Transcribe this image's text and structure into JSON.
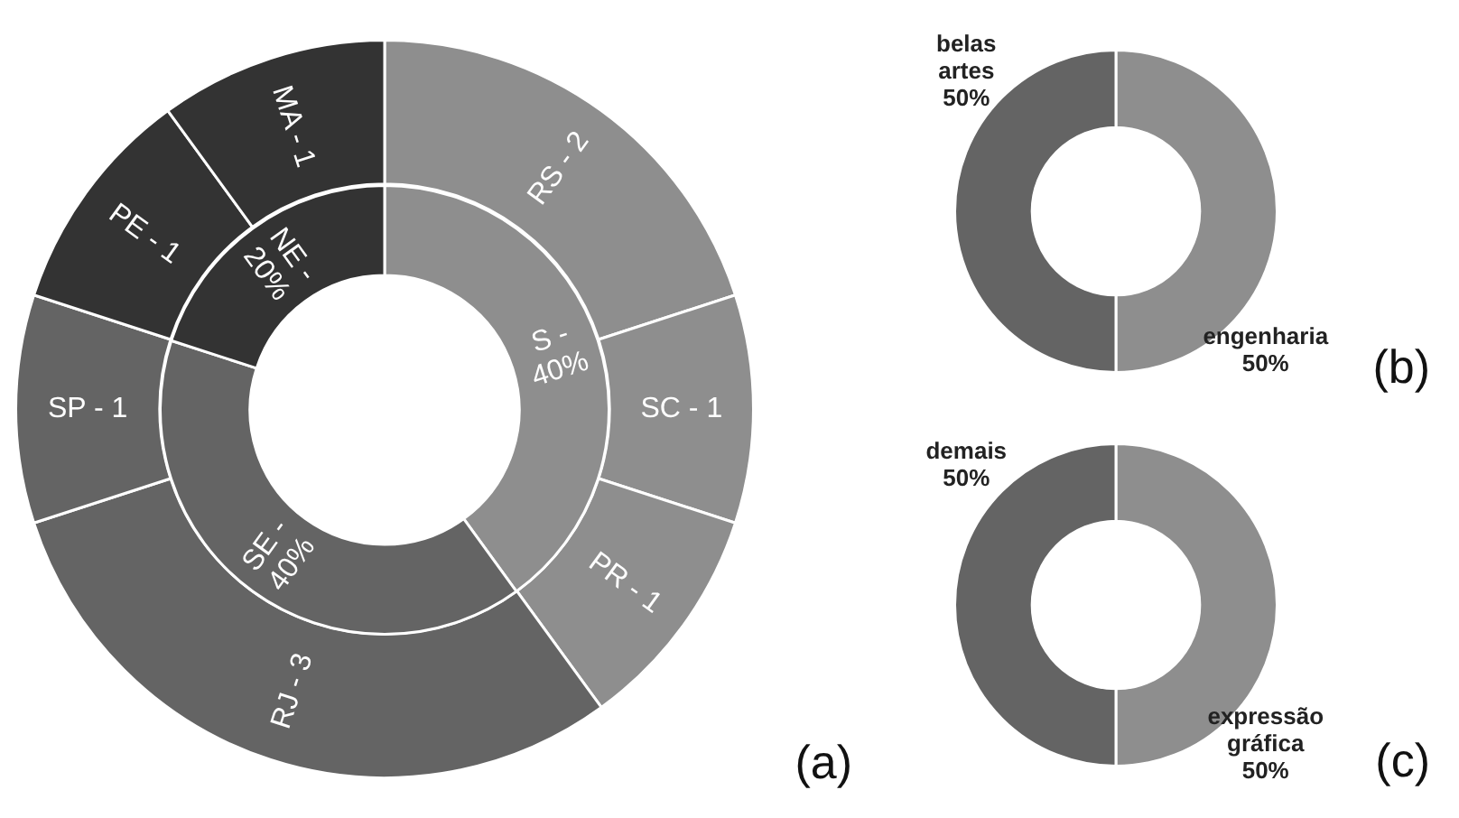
{
  "chart_data": [
    {
      "type": "donut",
      "annotations": [
        "(a)"
      ],
      "legend": false,
      "categories": [
        "RS - 2",
        "SC - 1",
        "PR - 1",
        "RJ - 3",
        "SP - 1",
        "PE - 1",
        "MA - 1"
      ],
      "values": [
        20,
        10,
        10,
        30,
        10,
        10,
        10
      ],
      "colors": [
        "#8e8e8e",
        "#8e8e8e",
        "#8e8e8e",
        "#646464",
        "#646464",
        "#333333",
        "#333333"
      ]
    },
    {
      "type": "donut",
      "legend": false,
      "categories": [
        "S - 40%",
        "SE - 40%",
        "NE - 20%"
      ],
      "values": [
        40,
        40,
        20
      ],
      "colors": [
        "#8e8e8e",
        "#646464",
        "#333333"
      ]
    },
    {
      "type": "donut",
      "annotations": [
        "(b)"
      ],
      "legend": false,
      "categories": [
        "engenharia",
        "belas artes"
      ],
      "values": [
        50,
        50
      ],
      "colors": [
        "#8e8e8e",
        "#646464"
      ],
      "value_labels": [
        "50%",
        "50%"
      ]
    },
    {
      "type": "donut",
      "annotations": [
        "(c)"
      ],
      "legend": false,
      "categories": [
        "expressão gráfica",
        "demais"
      ],
      "values": [
        50,
        50
      ],
      "colors": [
        "#8e8e8e",
        "#646464"
      ],
      "value_labels": [
        "50%",
        "50%"
      ]
    }
  ]
}
